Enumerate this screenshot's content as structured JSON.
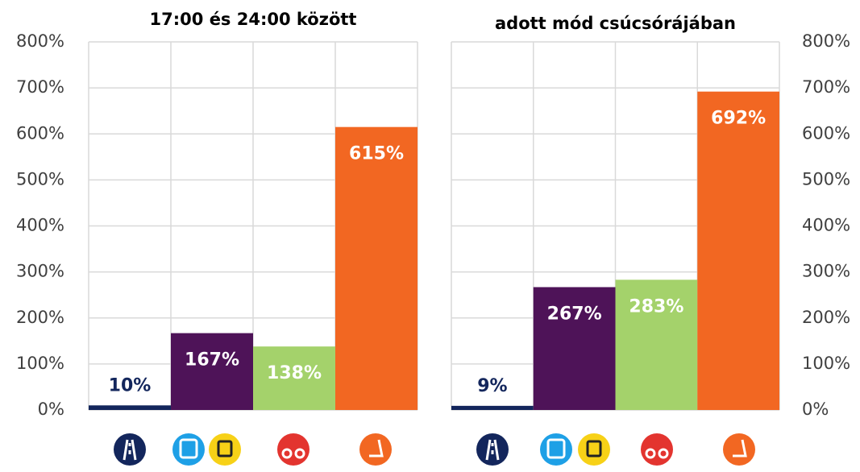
{
  "chart_data": [
    {
      "type": "bar",
      "title": "17:00 és 24:00 között",
      "categories": [
        null,
        null,
        null,
        null
      ],
      "values": [
        10,
        167,
        138,
        615
      ],
      "value_labels": [
        "10%",
        "167%",
        "138%",
        "615%"
      ],
      "colors": [
        "#13265c",
        "#4e1358",
        "#a4d26b",
        "#f26722"
      ],
      "ylim": [
        0,
        800
      ],
      "yticks": [
        {
          "value": 0,
          "label": "0%"
        },
        {
          "value": 100,
          "label": "100%"
        },
        {
          "value": 200,
          "label": "200%"
        },
        {
          "value": 300,
          "label": "300%"
        },
        {
          "value": 400,
          "label": "400%"
        },
        {
          "value": 500,
          "label": "500%"
        },
        {
          "value": 600,
          "label": "600%"
        },
        {
          "value": 700,
          "label": "700%"
        },
        {
          "value": 800,
          "label": "800%"
        }
      ],
      "yaxis_side": "left",
      "grid": true
    },
    {
      "type": "bar",
      "title": "adott mód csúcsórájában",
      "categories": [
        null,
        null,
        null,
        null
      ],
      "values": [
        9,
        267,
        283,
        692
      ],
      "value_labels": [
        "9%",
        "267%",
        "283%",
        "692%"
      ],
      "colors": [
        "#13265c",
        "#4e1358",
        "#a4d26b",
        "#f26722"
      ],
      "ylim": [
        0,
        800
      ],
      "yticks": [
        {
          "value": 0,
          "label": "0%"
        },
        {
          "value": 100,
          "label": "100%"
        },
        {
          "value": 200,
          "label": "200%"
        },
        {
          "value": 300,
          "label": "300%"
        },
        {
          "value": 400,
          "label": "400%"
        },
        {
          "value": 500,
          "label": "500%"
        },
        {
          "value": 600,
          "label": "600%"
        },
        {
          "value": 700,
          "label": "700%"
        },
        {
          "value": 800,
          "label": "800%"
        }
      ],
      "yaxis_side": "right",
      "grid": true
    }
  ]
}
